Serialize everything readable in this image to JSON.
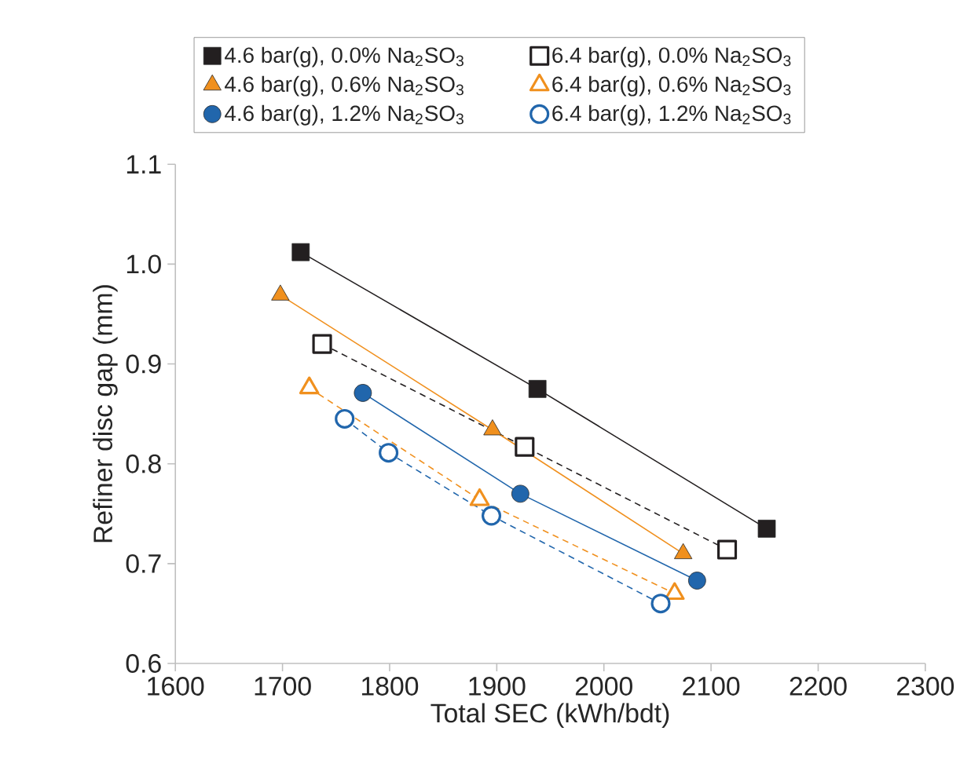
{
  "chart_data": {
    "type": "line",
    "xlabel": "Total SEC (kWh/bdt)",
    "ylabel": "Refiner disc gap (mm)",
    "xlim": [
      1600,
      2300
    ],
    "xticks": [
      1600,
      1700,
      1800,
      1900,
      2000,
      2100,
      2200,
      2300
    ],
    "ylim": [
      0.6,
      1.1
    ],
    "yticks": [
      0.6,
      0.7,
      0.8,
      0.9,
      {
        "value": 1.0,
        "label": "1.0"
      },
      1.1
    ],
    "legend": "top",
    "grid": false,
    "series": [
      {
        "name": "4.6 bar(g), 0.0% Na$_{2}$SO$_{3}$",
        "color": "#231f20",
        "marker": "square",
        "line_style": "solid",
        "x": [
          1717,
          1938,
          2152
        ],
        "values": [
          1.012,
          0.875,
          0.735
        ]
      },
      {
        "name": "6.4 bar(g), 0.0% Na$_{2}$SO$_{3}$",
        "color": "#231f20",
        "marker": "square",
        "line_style": "dashed",
        "x": [
          1737,
          1926,
          2115
        ],
        "values": [
          0.92,
          0.817,
          0.714
        ]
      },
      {
        "name": "4.6 bar(g), 0.6% Na$_{2}$SO$_{3}$",
        "color": "#f0901e",
        "marker": "triangle",
        "line_style": "solid",
        "x": [
          1698,
          1896,
          2074
        ],
        "values": [
          0.969,
          0.834,
          0.71
        ]
      },
      {
        "name": "6.4 bar(g), 0.6% Na$_{2}$SO$_{3}$",
        "color": "#f0901e",
        "marker": "triangle",
        "line_style": "dashed",
        "x": [
          1725,
          1884,
          2066
        ],
        "values": [
          0.876,
          0.764,
          0.67
        ]
      },
      {
        "name": "4.6 bar(g), 1.2% Na$_{2}$SO$_{3}$",
        "color": "#2166ac",
        "marker": "circle",
        "line_style": "solid",
        "x": [
          1775,
          1922,
          2087
        ],
        "values": [
          0.871,
          0.77,
          0.683
        ]
      },
      {
        "name": "6.4 bar(g), 1.2% Na$_{2}$SO$_{3}$",
        "color": "#2166ac",
        "marker": "circle",
        "line_style": "dashed",
        "x": [
          1758,
          1799,
          1895,
          2053
        ],
        "values": [
          0.845,
          0.811,
          0.748,
          0.66
        ]
      }
    ]
  }
}
